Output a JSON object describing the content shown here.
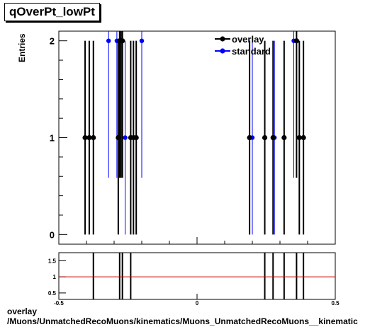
{
  "chart_data": {
    "type": "scatter",
    "title": "qOverPt_lowPt",
    "ylabel": "Entries",
    "xlim": [
      -0.5,
      0.5
    ],
    "ylim": [
      -0.1,
      2.1
    ],
    "yticks": [
      0,
      1,
      2
    ],
    "legend": {
      "placement": "top-right",
      "entries": [
        "overlay",
        "standard"
      ]
    },
    "series": [
      {
        "name": "overlay",
        "color": "#000000",
        "points": [
          [
            -0.405,
            1
          ],
          [
            -0.39,
            1
          ],
          [
            -0.375,
            1
          ],
          [
            -0.285,
            1
          ],
          [
            -0.28,
            2
          ],
          [
            -0.275,
            2
          ],
          [
            -0.27,
            2
          ],
          [
            -0.24,
            1
          ],
          [
            -0.23,
            1
          ],
          [
            -0.22,
            1
          ],
          [
            0.19,
            1
          ],
          [
            0.245,
            1
          ],
          [
            0.275,
            1
          ],
          [
            0.315,
            1
          ],
          [
            0.36,
            2
          ],
          [
            0.37,
            1
          ],
          [
            0.385,
            1
          ]
        ]
      },
      {
        "name": "standard",
        "color": "#0000ff",
        "points": [
          [
            -0.32,
            2
          ],
          [
            -0.29,
            2
          ],
          [
            -0.28,
            2
          ],
          [
            -0.26,
            1
          ],
          [
            -0.2,
            2
          ],
          [
            0.19,
            1
          ],
          [
            0.2,
            1
          ],
          [
            0.28,
            1
          ],
          [
            0.35,
            2
          ]
        ]
      }
    ],
    "ratio_panel": {
      "yticks": [
        0.5,
        1,
        1.5
      ],
      "ylim": [
        0.3,
        1.75
      ],
      "reference": 1,
      "reference_color": "#cc0000",
      "xticks": [
        -0.5,
        0,
        0.5
      ],
      "tick_labels": [
        "-0.5",
        "0",
        "0.5"
      ],
      "bars_x": [
        -0.375,
        -0.28,
        -0.27,
        -0.24,
        0.245,
        0.275,
        0.315,
        0.36,
        0.385
      ]
    }
  },
  "xlabel_partial": "Muons_UnmatchedRecoMuons__kinematic",
  "footer": {
    "line1": "overlay",
    "line2": "/Muons/UnmatchedRecoMuons/kinematics/Muons_UnmatchedRecoMuons__kinematic"
  }
}
